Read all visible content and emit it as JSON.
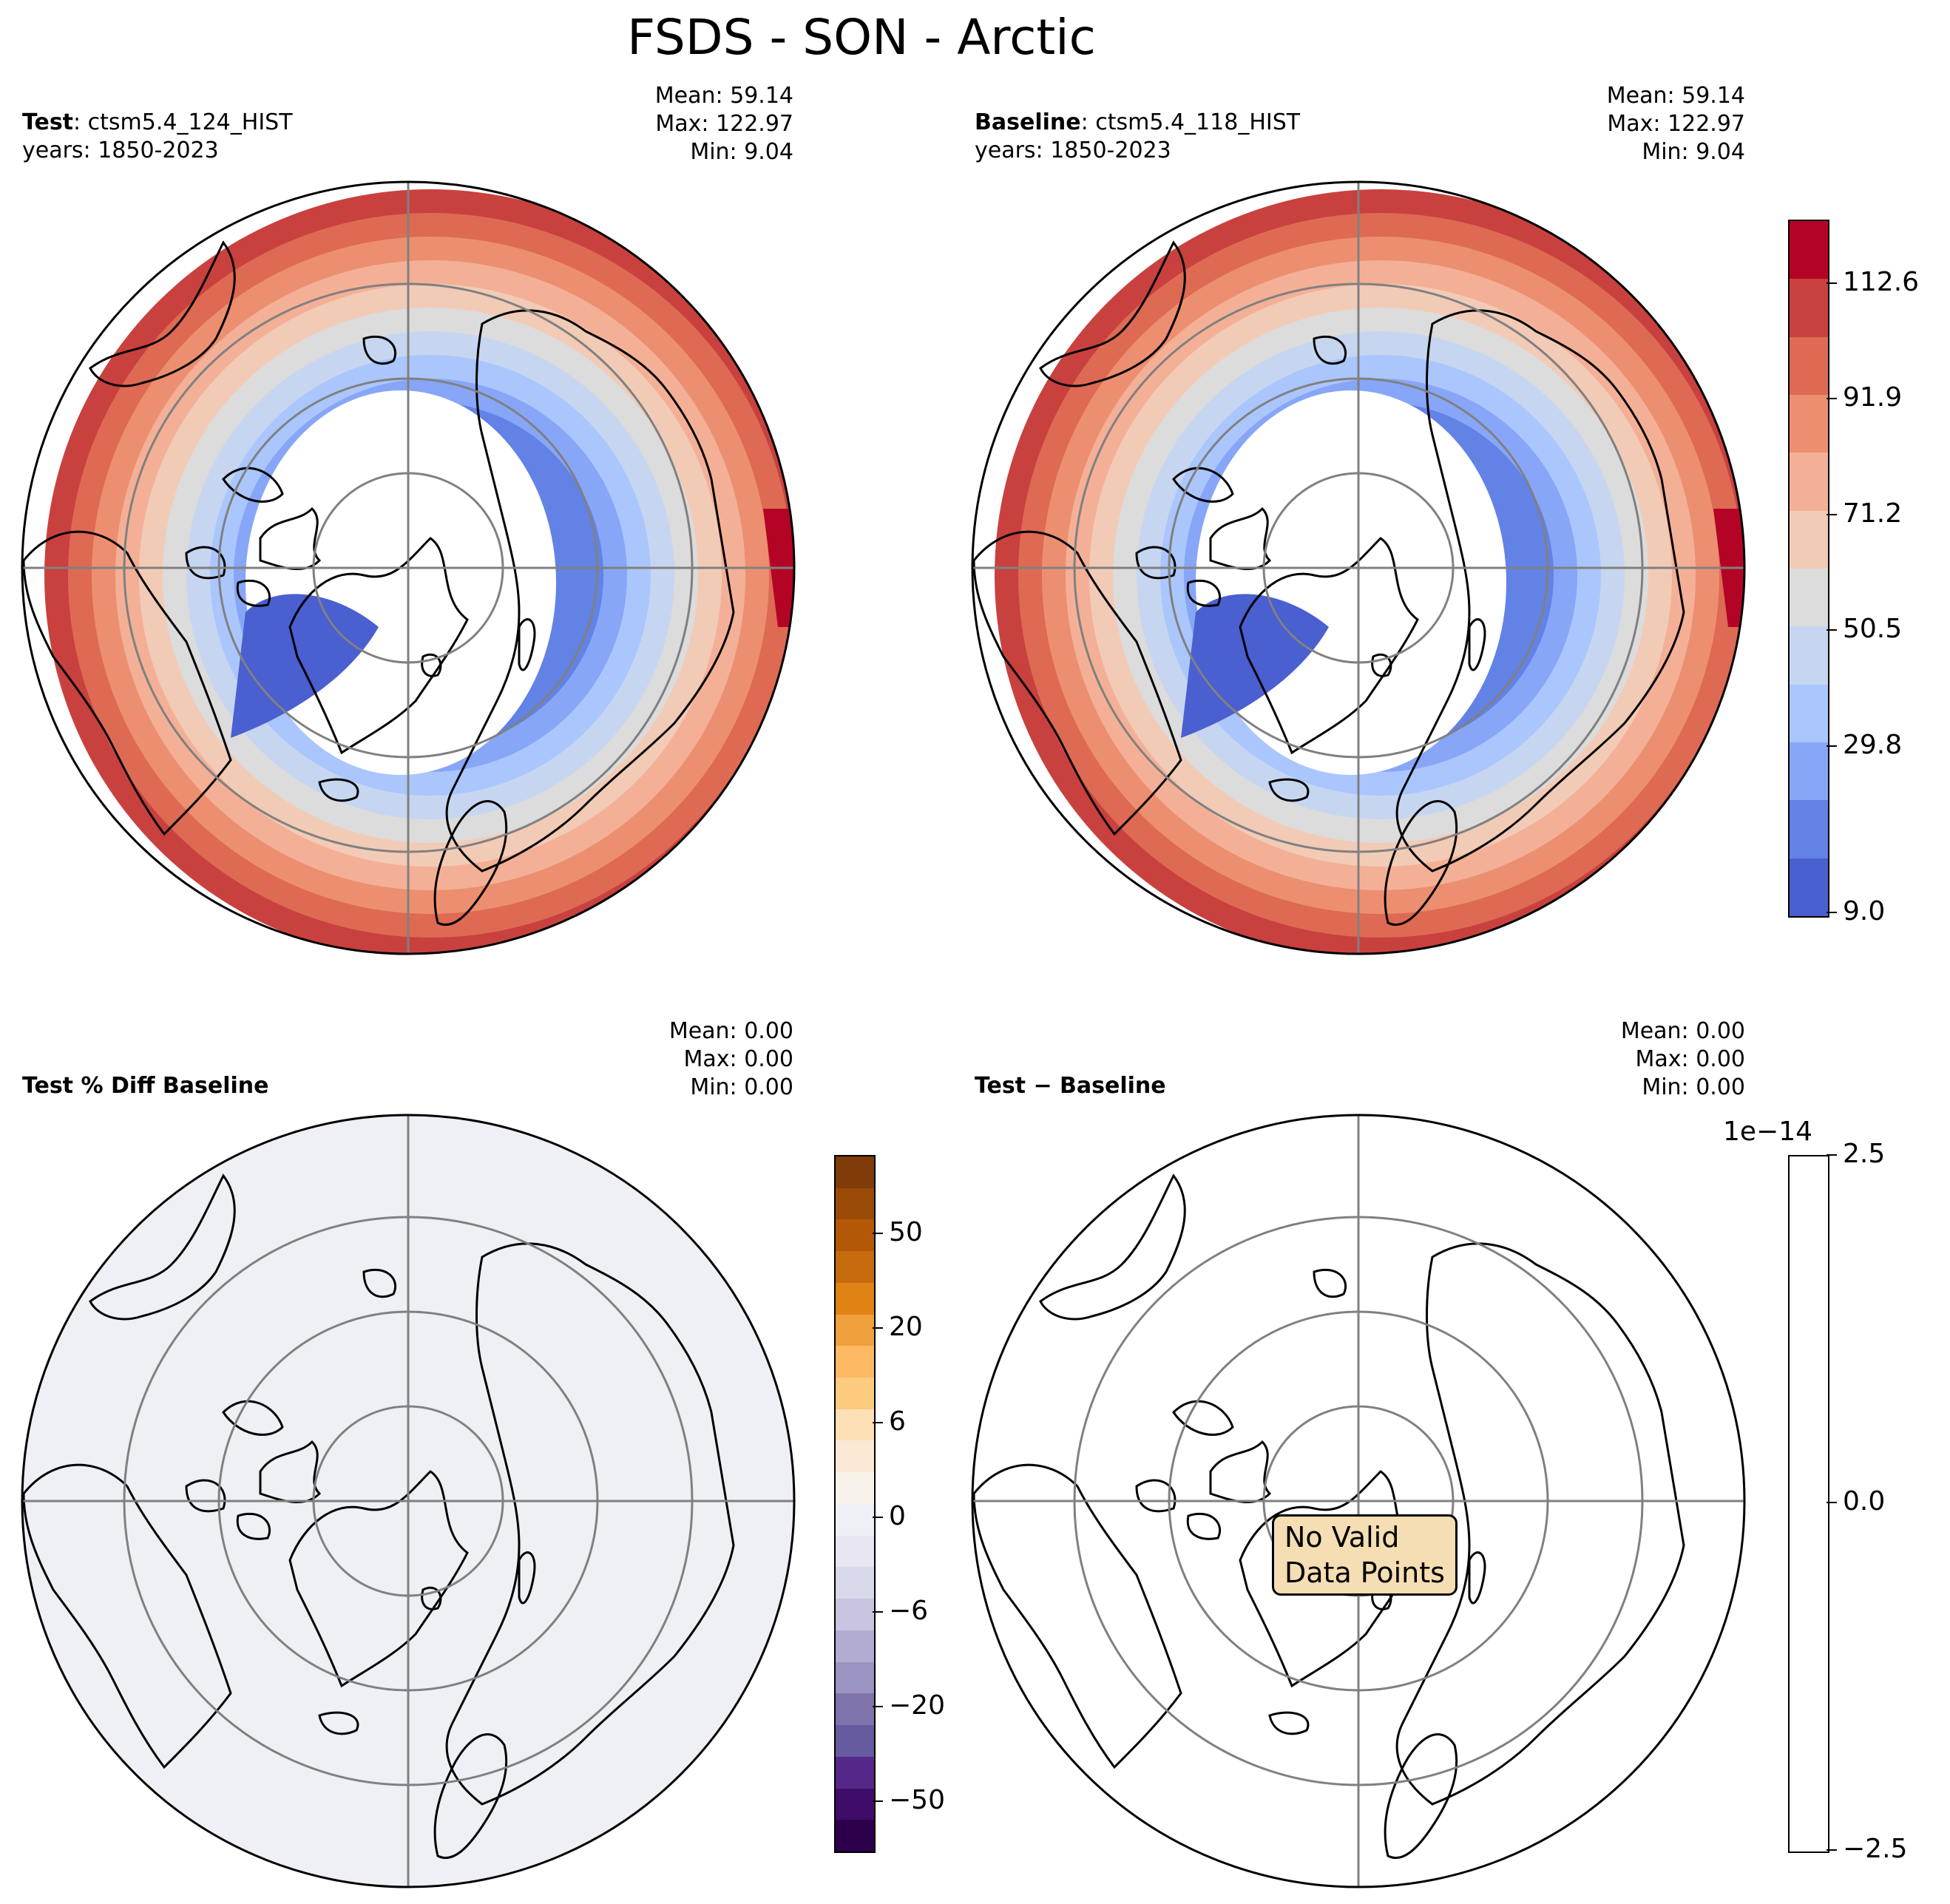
{
  "title": "FSDS - SON - Arctic",
  "panels": [
    {
      "id": "test",
      "label_bold": "Test",
      "label_rest": ": ctsm5.4_124_HIST",
      "years": "years: 1850-2023",
      "stats": [
        "Mean: 59.14",
        "Max: 122.97",
        "Min:  9.04"
      ]
    },
    {
      "id": "baseline",
      "label_bold": "Baseline",
      "label_rest": ": ctsm5.4_118_HIST",
      "years": "years: 1850-2023",
      "stats": [
        "Mean: 59.14",
        "Max: 122.97",
        "Min:  9.04"
      ]
    },
    {
      "id": "pctdiff",
      "label_bold": "Test % Diff Baseline",
      "stats": [
        "Mean:  0.00",
        "Max:  0.00",
        "Min:  0.00"
      ]
    },
    {
      "id": "diff",
      "label_bold": "Test − Baseline",
      "stats": [
        "Mean:  0.00",
        "Max:  0.00",
        "Min:  0.00"
      ],
      "message": [
        "No Valid",
        "Data Points"
      ]
    }
  ],
  "colorbars": {
    "main": {
      "ticks": [
        "112.6",
        "91.9",
        "71.2",
        "50.5",
        "29.8",
        "9.0"
      ],
      "colors": [
        "#4a5fd0",
        "#6282e6",
        "#87a6f7",
        "#aac6fd",
        "#c6d6f1",
        "#dcdcdc",
        "#f2cbb7",
        "#f4b096",
        "#ec8f70",
        "#de6a53",
        "#c9413e",
        "#b40426"
      ]
    },
    "pct": {
      "ticks": [
        "50",
        "20",
        "6",
        "0",
        "−6",
        "−20",
        "−50"
      ],
      "colors": [
        "#2d004b",
        "#3f0c69",
        "#542788",
        "#675ba0",
        "#8073ac",
        "#9b93c2",
        "#b2abd2",
        "#c9c4e0",
        "#d8daeb",
        "#e7e6f1",
        "#eff0f5",
        "#f7f2ea",
        "#fbe9d6",
        "#fee0b6",
        "#fdcb7f",
        "#fdb863",
        "#f0a03c",
        "#e08214",
        "#c66a0e",
        "#b35806",
        "#9a4a07",
        "#7f3b08"
      ]
    },
    "diff": {
      "exponent": "1e−14",
      "ticks": [
        "2.5",
        "0.0",
        "−2.5"
      ]
    }
  },
  "map_colors": {
    "land_fill_pct": "#eef0f5",
    "gridline": "#808080",
    "coast": "#000000"
  }
}
